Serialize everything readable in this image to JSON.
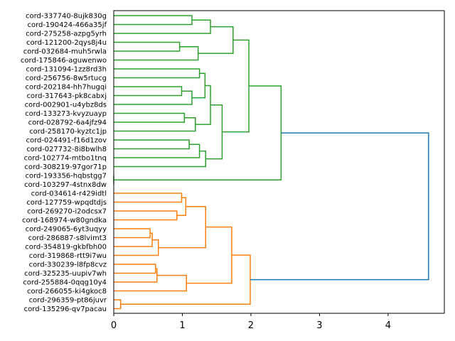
{
  "chart_data": {
    "type": "dendrogram",
    "orientation": "left",
    "title": "",
    "xlabel": "",
    "ylabel": "",
    "xlim": [
      0,
      4.82
    ],
    "xticks": [
      0,
      1,
      2,
      3,
      4
    ],
    "xtick_labels": [
      "0",
      "1",
      "2",
      "3",
      "4"
    ],
    "colors": {
      "cluster_a": "#2ca02c",
      "cluster_b": "#ff7f0e",
      "above_threshold": "#1f77b4"
    },
    "leaves": [
      "cord-337740-8ujk830g",
      "cord-190424-466a35jf",
      "cord-275258-azpg5yrh",
      "cord-121200-2qys8j4u",
      "cord-032684-muh5rwla",
      "cord-175846-aguwenwo",
      "cord-131094-1zz8rd3h",
      "cord-256756-8w5rtucg",
      "cord-202184-hh7hugqi",
      "cord-317643-pk8cabxj",
      "cord-002901-u4ybz8ds",
      "cord-133273-kvyzuayp",
      "cord-028792-6a4jfz94",
      "cord-258170-kyztc1jp",
      "cord-024491-f16d1zov",
      "cord-027732-8i8bwlh8",
      "cord-102774-mtbo1tnq",
      "cord-308219-97gor71p",
      "cord-193356-hqbstgg7",
      "cord-103297-4stnx8dw",
      "cord-034614-r429idtl",
      "cord-127759-wpqdtdjs",
      "cord-269270-i2odcsx7",
      "cord-168974-w80gndka",
      "cord-249065-6yt3uqyy",
      "cord-286887-s8lvimt3",
      "cord-354819-gkbfbh00",
      "cord-319868-rtt9i7wu",
      "cord-330239-l8fp8cvz",
      "cord-325235-uupiv7wh",
      "cord-255884-0qqg10y4",
      "cord-266055-ki4gkoc8",
      "cord-296359-pt86juvr",
      "cord-135296-qv7pacau"
    ],
    "merges": [
      [
        0,
        1,
        1.14,
        "cluster_a"
      ],
      [
        34,
        2,
        1.41,
        "cluster_a"
      ],
      [
        3,
        4,
        0.96,
        "cluster_a"
      ],
      [
        36,
        5,
        1.23,
        "cluster_a"
      ],
      [
        35,
        37,
        1.74,
        "cluster_a"
      ],
      [
        6,
        7,
        1.25,
        "cluster_a"
      ],
      [
        8,
        9,
        0.99,
        "cluster_a"
      ],
      [
        40,
        10,
        1.14,
        "cluster_a"
      ],
      [
        39,
        41,
        1.33,
        "cluster_a"
      ],
      [
        11,
        12,
        1.03,
        "cluster_a"
      ],
      [
        43,
        13,
        1.19,
        "cluster_a"
      ],
      [
        42,
        44,
        1.41,
        "cluster_a"
      ],
      [
        14,
        15,
        1.1,
        "cluster_a"
      ],
      [
        46,
        16,
        1.25,
        "cluster_a"
      ],
      [
        47,
        17,
        1.34,
        "cluster_a"
      ],
      [
        45,
        48,
        1.58,
        "cluster_a"
      ],
      [
        38,
        49,
        1.97,
        "cluster_a"
      ],
      [
        18,
        19,
        0.0,
        "cluster_a"
      ],
      [
        50,
        51,
        2.44,
        "cluster_a"
      ],
      [
        20,
        21,
        0.99,
        "cluster_b"
      ],
      [
        22,
        23,
        0.92,
        "cluster_b"
      ],
      [
        53,
        54,
        1.05,
        "cluster_b"
      ],
      [
        24,
        25,
        0.53,
        "cluster_b"
      ],
      [
        56,
        26,
        0.56,
        "cluster_b"
      ],
      [
        57,
        27,
        0.65,
        "cluster_b"
      ],
      [
        55,
        58,
        1.34,
        "cluster_b"
      ],
      [
        28,
        29,
        0.61,
        "cluster_b"
      ],
      [
        60,
        30,
        0.63,
        "cluster_b"
      ],
      [
        61,
        31,
        1.06,
        "cluster_b"
      ],
      [
        59,
        62,
        1.72,
        "cluster_b"
      ],
      [
        32,
        33,
        0.1,
        "cluster_b"
      ],
      [
        63,
        64,
        1.99,
        "cluster_b"
      ],
      [
        52,
        65,
        4.59,
        "above_threshold"
      ]
    ]
  }
}
